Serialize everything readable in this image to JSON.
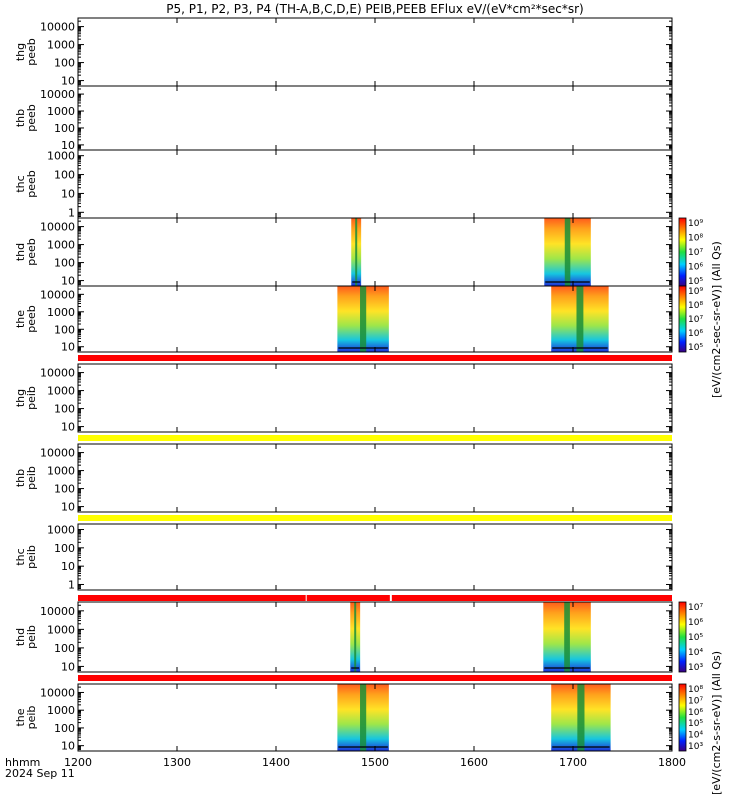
{
  "title": "P5, P1, P2, P3, P4 (TH-A,B,C,D,E) PEIB,PEEB EFlux eV/(eV*cm²*sec*sr)",
  "footer": {
    "line1": "hhmm",
    "line2": "2024 Sep 11"
  },
  "colorbar_labels": {
    "upper": "[eV/(cm2-sec-sr-eV)] (All Qs)",
    "lower": "[eV/(cm2-s-sr-eV)] (All Qs)"
  },
  "colors": {
    "red_band": "#ff0000",
    "yellow_band": "#ffff00",
    "line": "#000000"
  },
  "chart_data": {
    "type": "heatmap",
    "x_range": [
      1200,
      1800
    ],
    "x_ticks": [
      1200,
      1300,
      1400,
      1500,
      1600,
      1700,
      1800
    ],
    "x_tick_labels": [
      "1200",
      "1300",
      "1400",
      "1500",
      "1600",
      "1700",
      "1800"
    ],
    "y_scale": "log",
    "panels": [
      {
        "label": [
          "thg",
          "peeb"
        ],
        "ylim": [
          5,
          30000
        ],
        "y_ticks": [
          10,
          100,
          1000,
          10000
        ],
        "y_tick_labels": [
          "10",
          "100",
          "1000",
          "10000"
        ],
        "segments": []
      },
      {
        "label": [
          "thb",
          "peeb"
        ],
        "ylim": [
          5,
          30000
        ],
        "y_ticks": [
          10,
          100,
          1000,
          10000
        ],
        "y_tick_labels": [
          "10",
          "100",
          "1000",
          "10000"
        ],
        "segments": []
      },
      {
        "label": [
          "thc",
          "peeb"
        ],
        "ylim": [
          0.5,
          2000
        ],
        "y_ticks": [
          1,
          10,
          100,
          1000
        ],
        "y_tick_labels": [
          "1",
          "10",
          "100",
          "1000"
        ],
        "segments": []
      },
      {
        "label": [
          "thd",
          "peeb"
        ],
        "ylim": [
          5,
          30000
        ],
        "y_ticks": [
          10,
          100,
          1000,
          10000
        ],
        "y_tick_labels": [
          "10",
          "100",
          "1000",
          "10000"
        ],
        "segments": [
          {
            "x_start": 1476,
            "x_end": 1486
          },
          {
            "x_start": 1671,
            "x_end": 1718
          }
        ]
      },
      {
        "label": [
          "the",
          "peeb"
        ],
        "ylim": [
          5,
          30000
        ],
        "y_ticks": [
          10,
          100,
          1000,
          10000
        ],
        "y_tick_labels": [
          "10",
          "100",
          "1000",
          "10000"
        ],
        "segments": [
          {
            "x_start": 1462,
            "x_end": 1514
          },
          {
            "x_start": 1678,
            "x_end": 1736
          }
        ]
      },
      {
        "label": [
          "thg",
          "peib"
        ],
        "ylim": [
          5,
          30000
        ],
        "y_ticks": [
          10,
          100,
          1000,
          10000
        ],
        "y_tick_labels": [
          "10",
          "100",
          "1000",
          "10000"
        ],
        "segments": []
      },
      {
        "label": [
          "thb",
          "peib"
        ],
        "ylim": [
          5,
          30000
        ],
        "y_ticks": [
          10,
          100,
          1000,
          10000
        ],
        "y_tick_labels": [
          "10",
          "100",
          "1000",
          "10000"
        ],
        "segments": []
      },
      {
        "label": [
          "thc",
          "peib"
        ],
        "ylim": [
          0.5,
          2000
        ],
        "y_ticks": [
          1,
          10,
          100,
          1000
        ],
        "y_tick_labels": [
          "1",
          "10",
          "100",
          "1000"
        ],
        "segments": []
      },
      {
        "label": [
          "thd",
          "peib"
        ],
        "ylim": [
          5,
          30000
        ],
        "y_ticks": [
          10,
          100,
          1000,
          10000
        ],
        "y_tick_labels": [
          "10",
          "100",
          "1000",
          "10000"
        ],
        "segments": [
          {
            "x_start": 1475,
            "x_end": 1485
          },
          {
            "x_start": 1670,
            "x_end": 1718
          }
        ]
      },
      {
        "label": [
          "the",
          "peib"
        ],
        "ylim": [
          5,
          30000
        ],
        "y_ticks": [
          10,
          100,
          1000,
          10000
        ],
        "y_tick_labels": [
          "10",
          "100",
          "1000",
          "10000"
        ],
        "segments": [
          {
            "x_start": 1462,
            "x_end": 1514
          },
          {
            "x_start": 1678,
            "x_end": 1738
          }
        ]
      }
    ],
    "colorbars": [
      {
        "ticks": [
          "10⁹",
          "10⁸",
          "10⁷",
          "10⁶",
          "10⁵"
        ]
      },
      {
        "ticks": [
          "10⁹",
          "10⁸",
          "10⁷",
          "10⁶",
          "10⁵"
        ]
      },
      {
        "ticks": [
          "10⁷",
          "10⁶",
          "10⁵",
          "10⁴",
          "10³"
        ]
      },
      {
        "ticks": [
          "10⁸",
          "10⁷",
          "10⁶",
          "10⁵",
          "10⁴",
          "10³"
        ]
      }
    ],
    "bands": [
      {
        "color": "red",
        "gaps": []
      },
      {
        "color": "yellow",
        "gaps": []
      },
      {
        "color": "yellow",
        "gaps": []
      },
      {
        "color": "red",
        "gaps": [
          1431,
          1516
        ]
      },
      {
        "color": "red",
        "gaps": []
      }
    ]
  }
}
